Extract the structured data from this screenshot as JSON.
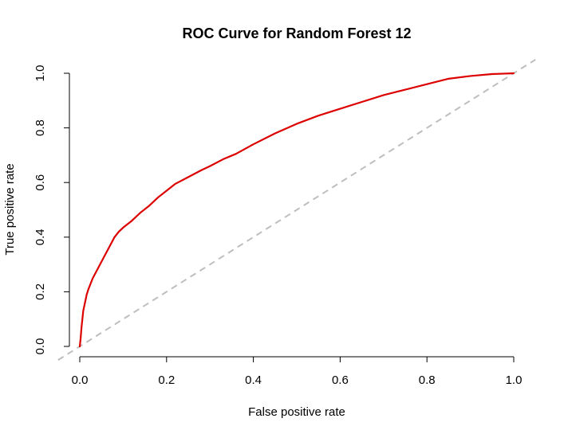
{
  "chart_data": {
    "type": "line",
    "title": "ROC Curve for Random Forest 12",
    "xlabel": "False positive rate",
    "ylabel": "True positive rate",
    "xlim": [
      0,
      1
    ],
    "ylim": [
      0,
      1
    ],
    "x_ticks": [
      "0.0",
      "0.2",
      "0.4",
      "0.6",
      "0.8",
      "1.0"
    ],
    "y_ticks": [
      "0.0",
      "0.2",
      "0.4",
      "0.6",
      "0.8",
      "1.0"
    ],
    "grid": false,
    "series": [
      {
        "color": "#dd0000",
        "style": "solid",
        "points": [
          [
            0.0,
            0.0
          ],
          [
            0.002,
            0.03
          ],
          [
            0.004,
            0.07
          ],
          [
            0.006,
            0.1
          ],
          [
            0.008,
            0.13
          ],
          [
            0.012,
            0.16
          ],
          [
            0.016,
            0.19
          ],
          [
            0.02,
            0.21
          ],
          [
            0.025,
            0.23
          ],
          [
            0.03,
            0.25
          ],
          [
            0.04,
            0.28
          ],
          [
            0.05,
            0.31
          ],
          [
            0.06,
            0.34
          ],
          [
            0.07,
            0.37
          ],
          [
            0.08,
            0.4
          ],
          [
            0.09,
            0.42
          ],
          [
            0.1,
            0.435
          ],
          [
            0.12,
            0.46
          ],
          [
            0.14,
            0.49
          ],
          [
            0.16,
            0.515
          ],
          [
            0.18,
            0.545
          ],
          [
            0.2,
            0.57
          ],
          [
            0.22,
            0.595
          ],
          [
            0.25,
            0.62
          ],
          [
            0.28,
            0.645
          ],
          [
            0.3,
            0.66
          ],
          [
            0.33,
            0.685
          ],
          [
            0.36,
            0.705
          ],
          [
            0.4,
            0.74
          ],
          [
            0.45,
            0.78
          ],
          [
            0.5,
            0.815
          ],
          [
            0.55,
            0.845
          ],
          [
            0.6,
            0.87
          ],
          [
            0.65,
            0.895
          ],
          [
            0.7,
            0.92
          ],
          [
            0.75,
            0.94
          ],
          [
            0.8,
            0.96
          ],
          [
            0.85,
            0.98
          ],
          [
            0.9,
            0.99
          ],
          [
            0.95,
            0.997
          ],
          [
            1.0,
            1.0
          ]
        ]
      },
      {
        "color": "#bebebe",
        "style": "dashed",
        "points": [
          [
            -0.05,
            -0.05
          ],
          [
            1.05,
            1.05
          ]
        ]
      }
    ]
  }
}
